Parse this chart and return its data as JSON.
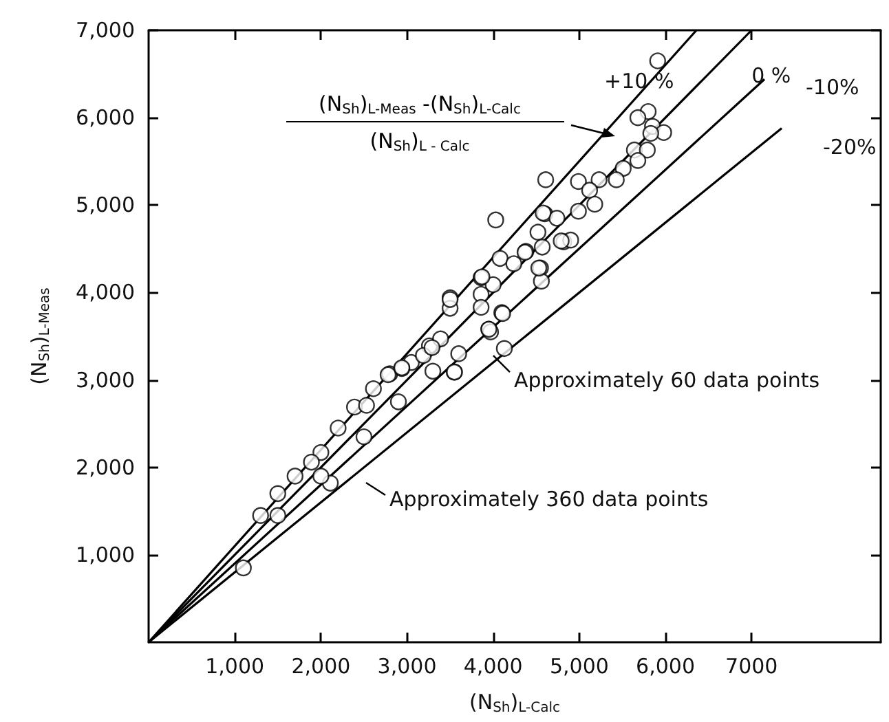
{
  "chart_data": {
    "type": "scatter",
    "xlabel": "(N$_{Sh}$)$_{L-Calc}$",
    "ylabel": "(N$_{Sh}$)$_{L-Meas}$",
    "xlim": [
      0,
      8500
    ],
    "ylim": [
      0,
      7000
    ],
    "xticks": [
      {
        "value": 1000,
        "label": "1,000"
      },
      {
        "value": 2000,
        "label": "2,000"
      },
      {
        "value": 3000,
        "label": "3,000"
      },
      {
        "value": 4000,
        "label": "4,000"
      },
      {
        "value": 5000,
        "label": "5,000"
      },
      {
        "value": 6000,
        "label": "6,000"
      },
      {
        "value": 7000,
        "label": "7000"
      }
    ],
    "yticks": [
      {
        "value": 1000,
        "label": "1,000"
      },
      {
        "value": 2000,
        "label": "2,000"
      },
      {
        "value": 3000,
        "label": "3,000"
      },
      {
        "value": 4000,
        "label": "4,000"
      },
      {
        "value": 5000,
        "label": "5,000"
      },
      {
        "value": 6000,
        "label": "6,000"
      },
      {
        "value": 7000,
        "label": "7,000"
      }
    ],
    "grid": false,
    "legend": "top right",
    "annotations": [
      "(N$_{Sh}$)$_{L-Meas}$ -(N$_{Sh}$)$_{L-Calc}$",
      "(N$_{Sh}$)$_{L - Calc}$",
      {
        "text": "Approximately 60 data points",
        "x": 3970,
        "y": 3310
      },
      "Approximately 360 data points"
    ],
    "series": [
      {
        "marker": "circle",
        "color": "#000000",
        "x": [
          5910,
          5800,
          5680,
          5850,
          5980,
          5830,
          5640,
          5790,
          5680,
          5510,
          5430,
          5230,
          4990,
          5120,
          5180,
          4990,
          4610,
          4030,
          4600,
          4740,
          4520,
          4820,
          4900,
          4570,
          4380,
          4080,
          4240,
          4550,
          4560,
          3860,
          4000,
          3860,
          4100,
          3500,
          3500,
          3860,
          3950,
          4130,
          3550,
          3970,
          3260,
          3050,
          2800,
          2940,
          2610,
          2390,
          2530,
          2000,
          1890,
          1100,
          2110,
          3190,
          3390,
          2780,
          2940,
          3290,
          3500,
          3870,
          4110,
          3950,
          3550,
          4370,
          4580,
          4790,
          4530,
          1300,
          1500,
          1700,
          2200,
          1500,
          2000,
          2500,
          2900,
          3300,
          3600
        ],
        "values": [
          6650,
          6070,
          6000,
          5900,
          5830,
          5820,
          5630,
          5630,
          5510,
          5420,
          5290,
          5290,
          5270,
          5170,
          5010,
          4930,
          5290,
          4830,
          4900,
          4850,
          4690,
          4580,
          4600,
          4520,
          4470,
          4390,
          4330,
          4280,
          4130,
          4170,
          4090,
          3980,
          3770,
          3940,
          3820,
          3830,
          3580,
          3360,
          3090,
          3550,
          3390,
          3200,
          3070,
          3130,
          2900,
          2690,
          2710,
          2170,
          2060,
          850,
          1820,
          3280,
          3470,
          3060,
          3140,
          3370,
          3920,
          4180,
          3760,
          3580,
          3090,
          4460,
          4910,
          4590,
          4280,
          1450,
          1700,
          1900,
          2450,
          1450,
          1900,
          2350,
          2750,
          3100,
          3300
        ]
      },
      {
        "type": "line",
        "marker": "none",
        "name": "+10 %",
        "color": "#000000",
        "x": [
          0,
          6360
        ],
        "values": [
          0,
          7000
        ]
      },
      {
        "type": "line",
        "marker": "none",
        "name": "0 %",
        "color": "#000000",
        "x": [
          0,
          7000
        ],
        "values": [
          0,
          7000
        ]
      },
      {
        "type": "line",
        "marker": "none",
        "name": "-10%",
        "color": "#000000",
        "x": [
          0,
          7150
        ],
        "values": [
          0,
          6440
        ]
      },
      {
        "type": "line",
        "marker": "none",
        "name": "-20%",
        "color": "#000000",
        "x": [
          0,
          7350
        ],
        "values": [
          0,
          5880
        ]
      }
    ]
  }
}
